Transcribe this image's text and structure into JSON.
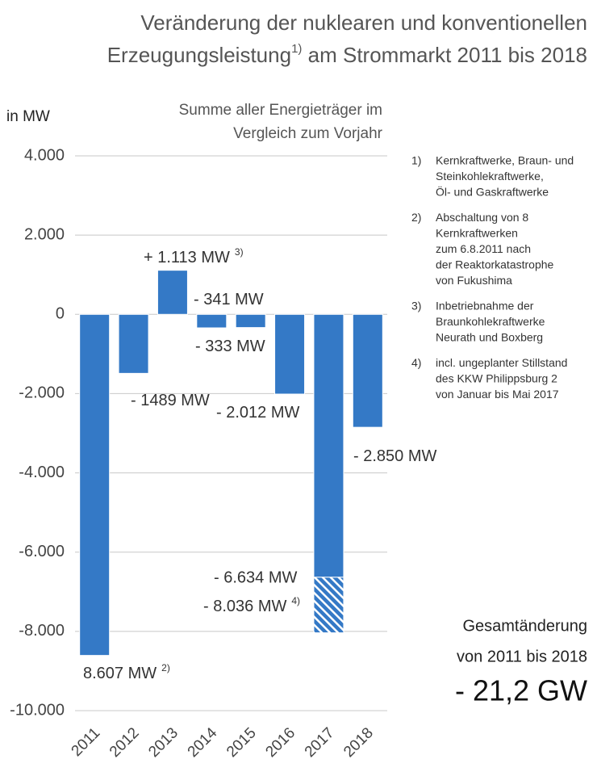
{
  "chart_data": {
    "type": "bar",
    "title_line1": "Veränderung der nuklearen und konventionellen",
    "title_line2": "Erzeugungsleistung",
    "title_sup": "1)",
    "title_line2_end": " am Strommarkt 2011 bis 2018",
    "y_label": "in MW",
    "subtitle": [
      "Summe aller Energieträger im",
      "Vergleich zum Vorjahr"
    ],
    "categories": [
      "2011",
      "2012",
      "2013",
      "2014",
      "2015",
      "2016",
      "2017",
      "2018"
    ],
    "values": [
      -8607,
      -1489,
      1113,
      -341,
      -333,
      -2012,
      -8036,
      -2850
    ],
    "value_labels": [
      "8.607 MW",
      "- 1489 MW",
      "+ 1.113 MW",
      "- 341 MW",
      "- 333 MW",
      "- 2.012 MW",
      "- 8.036 MW",
      "- 2.850 MW"
    ],
    "value_notes": [
      "2)",
      null,
      "3)",
      null,
      null,
      null,
      "4)",
      null
    ],
    "hatch_from": {
      "category": "2017",
      "value": -6634,
      "label": "- 6.634 MW"
    },
    "color": "#3479c6",
    "ylim": [
      -10000,
      4000
    ],
    "yticks": [
      {
        "value": 4000,
        "label": "4.000"
      },
      {
        "value": 2000,
        "label": "2.000"
      },
      0,
      {
        "value": -2000,
        "label": "-2.000"
      },
      {
        "value": -4000,
        "label": "-4.000"
      },
      {
        "value": -6000,
        "label": "-6.000"
      },
      {
        "value": -8000,
        "label": "-8.000"
      },
      {
        "value": -10000,
        "label": "-10.000"
      }
    ],
    "grid": true,
    "footnotes": [
      {
        "num": "1)",
        "lines": [
          "Kernkraftwerke, Braun- und",
          "Steinkohlekraftwerke,",
          "Öl- und Gaskraftwerke"
        ]
      },
      {
        "num": "2)",
        "lines": [
          "Abschaltung von 8",
          "Kernkraftwerken",
          "zum 6.8.2011 nach",
          "der Reaktorkatastrophe",
          "von Fukushima"
        ]
      },
      {
        "num": "3)",
        "lines": [
          "Inbetriebnahme der",
          "Braunkohlekraftwerke",
          "Neurath und Boxberg"
        ]
      },
      {
        "num": "4)",
        "lines": [
          "incl. ungeplanter Stillstand",
          "des KKW Philippsburg 2",
          "von Januar bis Mai 2017"
        ]
      }
    ],
    "total": {
      "line1": "Gesamtänderung",
      "line2": "von 2011 bis 2018",
      "value_label": "- 21,2 GW"
    }
  }
}
